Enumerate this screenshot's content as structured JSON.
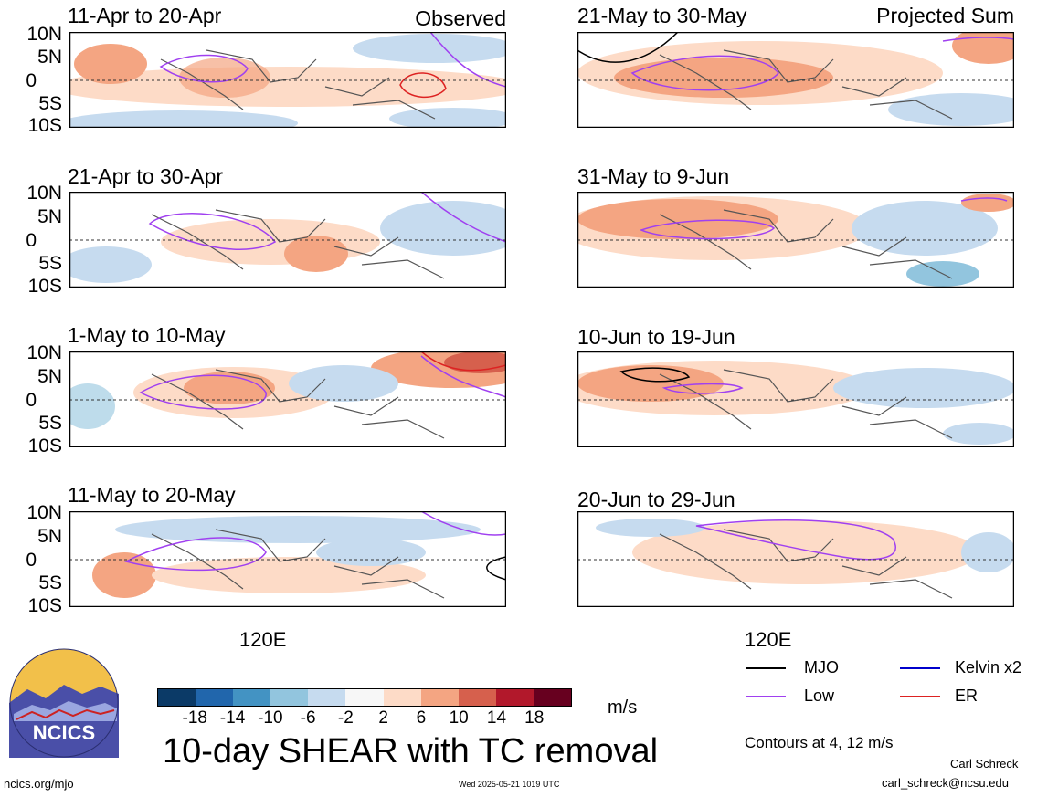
{
  "y_axis_labels": [
    "10N",
    "5N",
    "0",
    "5S",
    "10S"
  ],
  "x_axis_label": "120E",
  "columns": {
    "left_header": "Observed",
    "right_header": "Projected Sum"
  },
  "panels": [
    {
      "title": "11-Apr to 20-Apr"
    },
    {
      "title": "21-Apr to 30-Apr"
    },
    {
      "title": "1-May to 10-May"
    },
    {
      "title": "11-May to 20-May"
    },
    {
      "title": "21-May to 30-May"
    },
    {
      "title": "31-May to 9-Jun"
    },
    {
      "title": "10-Jun to 19-Jun"
    },
    {
      "title": "20-Jun to 29-Jun"
    }
  ],
  "colorbar": {
    "colors": [
      "#0b3a67",
      "#2166ac",
      "#4393c3",
      "#92c5de",
      "#c6dbef",
      "#f7f7f7",
      "#fddbc7",
      "#f4a582",
      "#d6604d",
      "#b2182b",
      "#67001f"
    ],
    "ticks": [
      "-18",
      "-14",
      "-10",
      "-6",
      "-2",
      "2",
      "6",
      "10",
      "14",
      "18"
    ],
    "units": "m/s"
  },
  "title": "10-day SHEAR with TC removal",
  "legend": {
    "items": [
      {
        "label": "MJO",
        "color": "#000000"
      },
      {
        "label": "Kelvin x2",
        "color": "#0000cc"
      },
      {
        "label": "Low",
        "color": "#a040f0"
      },
      {
        "label": "ER",
        "color": "#dd2222"
      }
    ],
    "contours_note": "Contours at 4, 12 m/s"
  },
  "logo": {
    "text": "NCICS"
  },
  "footer": {
    "url": "ncics.org/mjo",
    "timestamp": "Wed 2025-05-21 1019 UTC",
    "author": "Carl Schreck",
    "email": "carl_schreck@ncsu.edu"
  }
}
